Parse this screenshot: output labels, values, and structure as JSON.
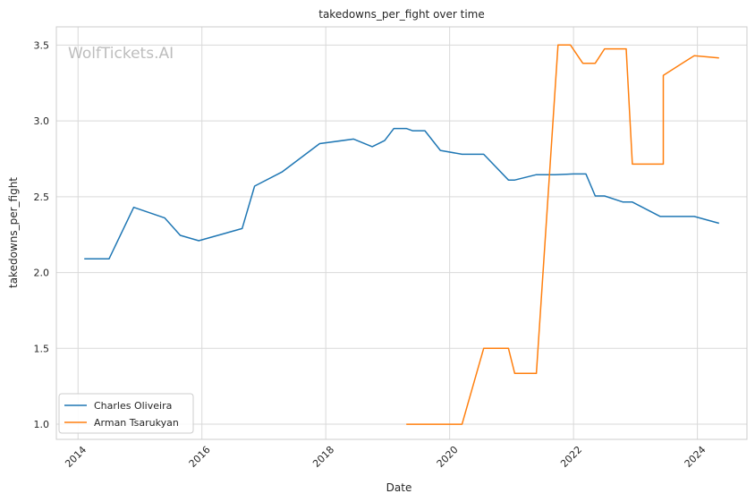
{
  "chart_data": {
    "type": "line",
    "title": "takedowns_per_fight over time",
    "xlabel": "Date",
    "ylabel": "takedowns_per_fight",
    "watermark": "WolfTickets.AI",
    "xlim": [
      2013.65,
      2024.8
    ],
    "ylim": [
      0.9,
      3.62
    ],
    "x_ticks": [
      2014,
      2016,
      2018,
      2020,
      2022,
      2024
    ],
    "x_tick_labels": [
      "2014",
      "2016",
      "2018",
      "2020",
      "2022",
      "2024"
    ],
    "y_ticks": [
      1.0,
      1.5,
      2.0,
      2.5,
      3.0,
      3.5
    ],
    "y_tick_labels": [
      "1.0",
      "1.5",
      "2.0",
      "2.5",
      "3.0",
      "3.5"
    ],
    "grid": true,
    "legend_position": "lower-left",
    "series": [
      {
        "name": "Charles Oliveira",
        "color": "#1f77b4",
        "points": [
          [
            2014.1,
            2.09
          ],
          [
            2014.5,
            2.09
          ],
          [
            2014.9,
            2.43
          ],
          [
            2015.4,
            2.36
          ],
          [
            2015.65,
            2.245
          ],
          [
            2015.95,
            2.21
          ],
          [
            2016.65,
            2.29
          ],
          [
            2016.85,
            2.57
          ],
          [
            2017.3,
            2.665
          ],
          [
            2017.9,
            2.85
          ],
          [
            2018.45,
            2.88
          ],
          [
            2018.75,
            2.83
          ],
          [
            2018.95,
            2.87
          ],
          [
            2019.1,
            2.95
          ],
          [
            2019.3,
            2.95
          ],
          [
            2019.4,
            2.935
          ],
          [
            2019.6,
            2.935
          ],
          [
            2019.85,
            2.805
          ],
          [
            2020.2,
            2.78
          ],
          [
            2020.55,
            2.78
          ],
          [
            2020.95,
            2.61
          ],
          [
            2021.05,
            2.61
          ],
          [
            2021.4,
            2.645
          ],
          [
            2021.7,
            2.645
          ],
          [
            2022.0,
            2.65
          ],
          [
            2022.2,
            2.65
          ],
          [
            2022.35,
            2.505
          ],
          [
            2022.5,
            2.505
          ],
          [
            2022.8,
            2.465
          ],
          [
            2022.95,
            2.465
          ],
          [
            2023.4,
            2.37
          ],
          [
            2023.95,
            2.37
          ],
          [
            2024.35,
            2.325
          ]
        ]
      },
      {
        "name": "Arman Tsarukyan",
        "color": "#ff7f0e",
        "points": [
          [
            2019.3,
            1.0
          ],
          [
            2020.2,
            1.0
          ],
          [
            2020.55,
            1.5
          ],
          [
            2020.95,
            1.5
          ],
          [
            2021.05,
            1.335
          ],
          [
            2021.4,
            1.335
          ],
          [
            2021.75,
            3.5
          ],
          [
            2021.95,
            3.5
          ],
          [
            2022.15,
            3.38
          ],
          [
            2022.35,
            3.38
          ],
          [
            2022.5,
            3.475
          ],
          [
            2022.85,
            3.475
          ],
          [
            2022.95,
            2.715
          ],
          [
            2023.45,
            2.715
          ],
          [
            2023.45,
            3.3
          ],
          [
            2023.95,
            3.43
          ],
          [
            2024.35,
            3.415
          ]
        ]
      }
    ]
  }
}
